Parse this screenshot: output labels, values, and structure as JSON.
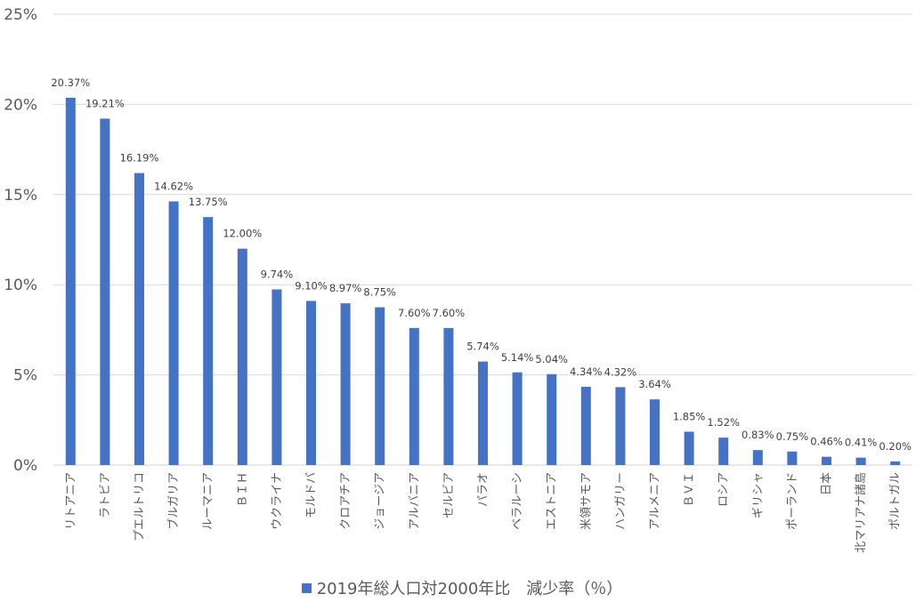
{
  "chart_data": {
    "type": "bar",
    "title": "",
    "xlabel": "",
    "ylabel": "",
    "ylim": [
      0,
      25
    ],
    "y_ticks": [
      "0%",
      "5%",
      "10%",
      "15%",
      "20%",
      "25%"
    ],
    "y_tick_values": [
      0,
      5,
      10,
      15,
      20,
      25
    ],
    "grid": true,
    "legend_position": "bottom",
    "bar_color": "#4472C4",
    "categories": [
      "リトアニア",
      "ラトビア",
      "プエルトリコ",
      "ブルガリア",
      "ルーマニア",
      "ＢＩＨ",
      "ウクライナ",
      "モルドバ",
      "クロアチア",
      "ジョージア",
      "アルバニア",
      "セルビア",
      "パラオ",
      "ベラルーシ",
      "エストニア",
      "米領サモア",
      "ハンガリー",
      "アルメニア",
      "ＢＶＩ",
      "ロシア",
      "ギリシャ",
      "ポーランド",
      "日本",
      "北マリアナ諸島",
      "ポルトガル"
    ],
    "series": [
      {
        "name": "2019年総人口対2000年比　減少率（％）",
        "values": [
          20.37,
          19.21,
          16.19,
          14.62,
          13.75,
          12.0,
          9.74,
          9.1,
          8.97,
          8.75,
          7.6,
          7.6,
          5.74,
          5.14,
          5.04,
          4.34,
          4.32,
          3.64,
          1.85,
          1.52,
          0.83,
          0.75,
          0.46,
          0.41,
          0.2
        ],
        "labels": [
          "20.37%",
          "19.21%",
          "16.19%",
          "14.62%",
          "13.75%",
          "12.00%",
          "9.74%",
          "9.10%",
          "8.97%",
          "8.75%",
          "7.60%",
          "7.60%",
          "5.74%",
          "5.14%",
          "5.04%",
          "4.34%",
          "4.32%",
          "3.64%",
          "1.85%",
          "1.52%",
          "0.83%",
          "0.75%",
          "0.46%",
          "0.41%",
          "0.20%"
        ]
      }
    ]
  }
}
